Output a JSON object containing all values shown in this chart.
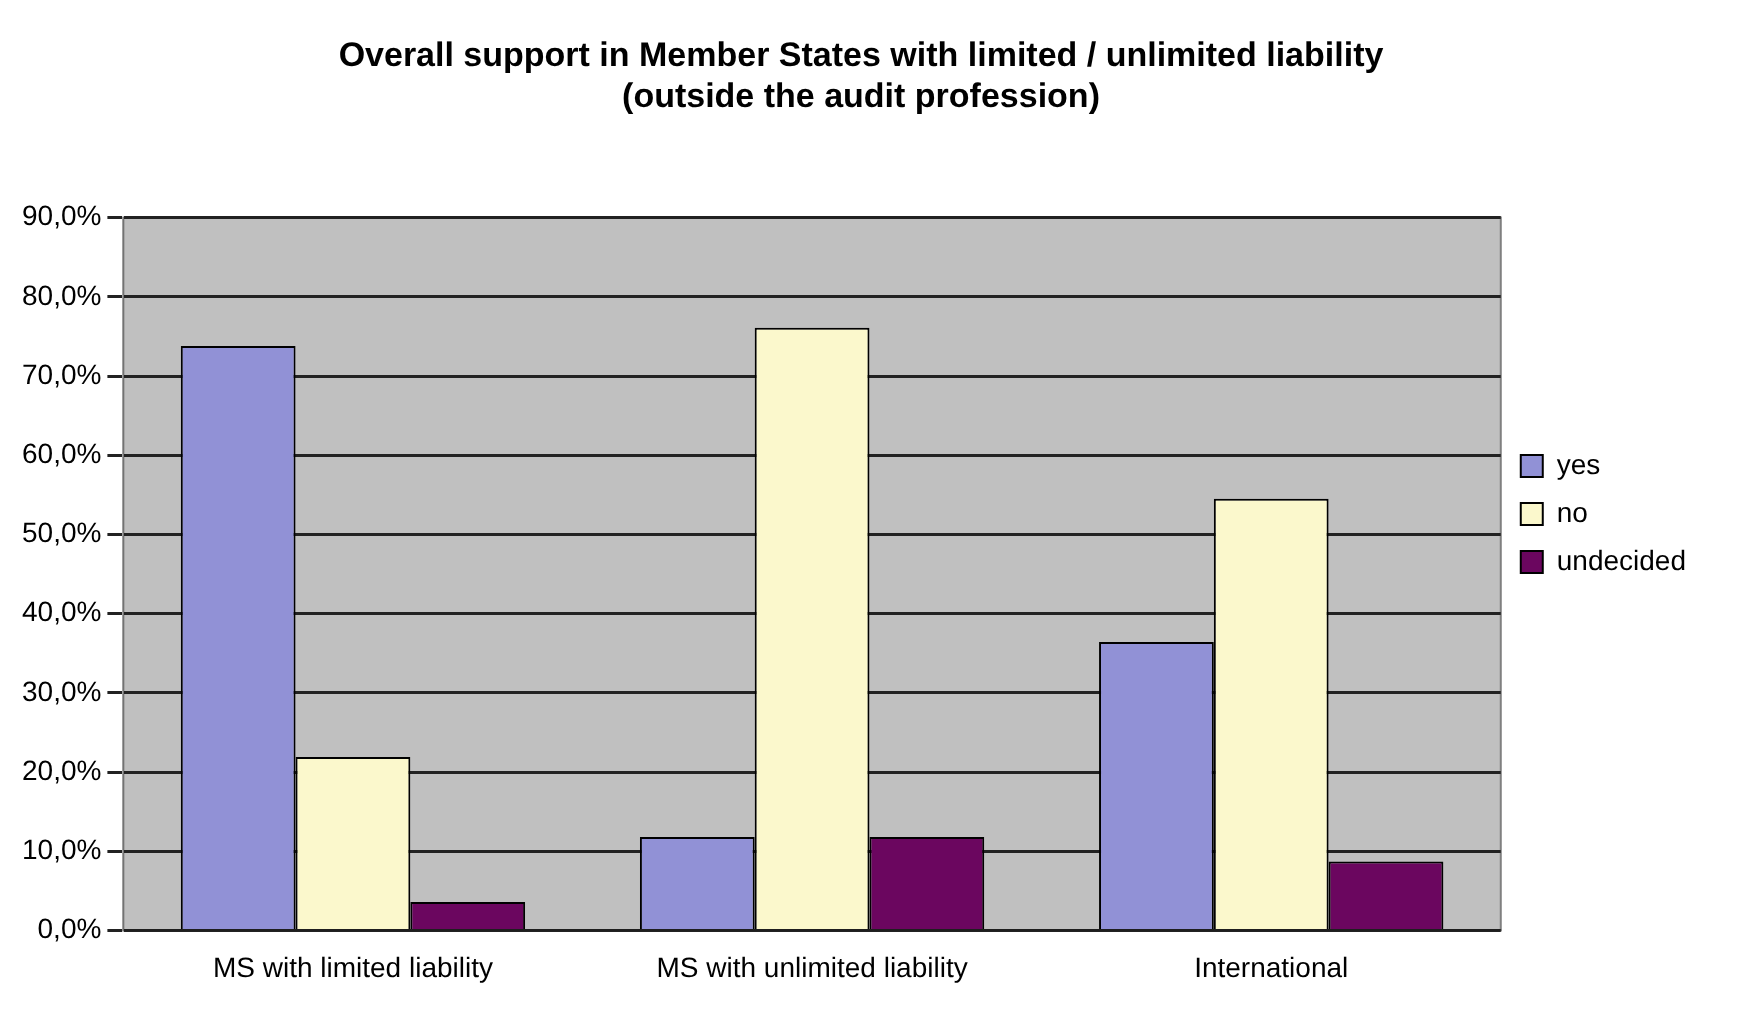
{
  "chart_data": {
    "type": "bar",
    "title": "Overall support in Member States with limited / unlimited liability",
    "subtitle": "(outside the audit profession)",
    "categories": [
      "MS with limited liability",
      "MS with unlimited liability",
      "International"
    ],
    "series": [
      {
        "name": "yes",
        "color": "#9191d6",
        "values": [
          73.8,
          11.8,
          36.4
        ]
      },
      {
        "name": "no",
        "color": "#fbf8cc",
        "values": [
          21.9,
          76.1,
          54.5
        ]
      },
      {
        "name": "undecided",
        "color": "#6b065f",
        "values": [
          3.6,
          11.8,
          8.7
        ]
      }
    ],
    "ylim": [
      0,
      90
    ],
    "yticks": [
      {
        "value": 0,
        "label": "0,0%"
      },
      {
        "value": 10,
        "label": "10,0%"
      },
      {
        "value": 20,
        "label": "20,0%"
      },
      {
        "value": 30,
        "label": "30,0%"
      },
      {
        "value": 40,
        "label": "40,0%"
      },
      {
        "value": 50,
        "label": "50,0%"
      },
      {
        "value": 60,
        "label": "60,0%"
      },
      {
        "value": 70,
        "label": "70,0%"
      },
      {
        "value": 80,
        "label": "80,0%"
      },
      {
        "value": 90,
        "label": "90,0%"
      }
    ],
    "grid": "y",
    "legend": "right"
  }
}
